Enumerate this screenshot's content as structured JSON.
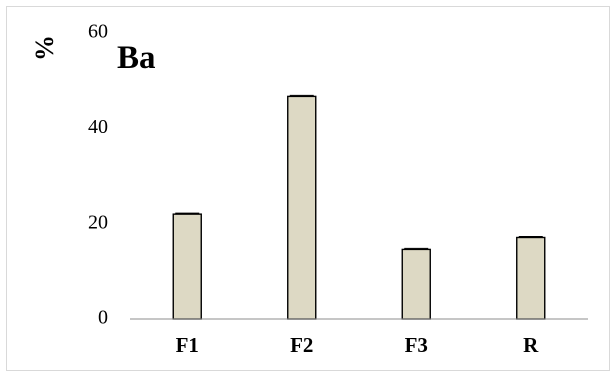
{
  "chart_data": {
    "type": "bar",
    "title": "Ba",
    "ylabel": "%",
    "xlabel": "",
    "categories": [
      "F1",
      "F2",
      "F3",
      "R"
    ],
    "values": [
      22.0,
      46.7,
      14.6,
      17.1
    ],
    "ylim": [
      0,
      60
    ],
    "yticks": [
      "0",
      "20",
      "40",
      "60"
    ],
    "grid": false,
    "bar_color": "#ddd9c4",
    "bar_edge_color": "#000000",
    "axis_color": "#8c8c8c",
    "error_bars": true
  }
}
